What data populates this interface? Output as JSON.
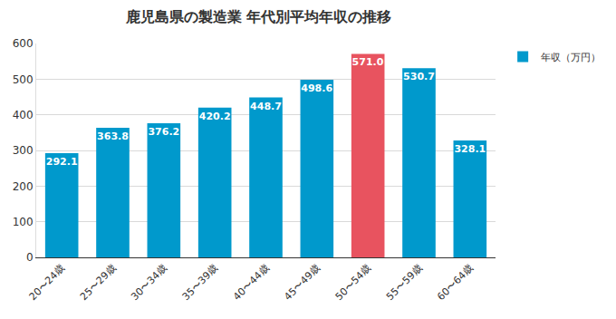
{
  "chart_data": {
    "type": "bar",
    "title": "鹿児島県の製造業 年代別平均年収の推移",
    "categories": [
      "20〜24歳",
      "25〜29歳",
      "30〜34歳",
      "35〜39歳",
      "40〜44歳",
      "45〜49歳",
      "50〜54歳",
      "55〜59歳",
      "60〜64歳"
    ],
    "series": [
      {
        "name": "年収（万円）",
        "color": "#0099cc",
        "values": [
          292.1,
          363.8,
          376.2,
          420.2,
          448.7,
          498.6,
          571.0,
          530.7,
          328.1
        ],
        "value_labels": [
          "292.1",
          "363.8",
          "376.2",
          "420.2",
          "448.7",
          "498.6",
          "571.0",
          "530.7",
          "328.1"
        ],
        "colors": [
          "#0099cc",
          "#0099cc",
          "#0099cc",
          "#0099cc",
          "#0099cc",
          "#0099cc",
          "#e8535f",
          "#0099cc",
          "#0099cc"
        ]
      }
    ],
    "ylim": [
      0,
      600
    ],
    "yticks": [
      0,
      100,
      200,
      300,
      400,
      500,
      600
    ],
    "grid": true,
    "legend": "top right",
    "data_labels": true
  }
}
